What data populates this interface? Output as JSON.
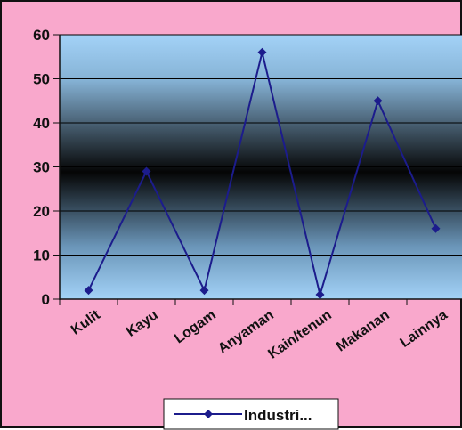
{
  "chart_data": {
    "type": "line",
    "categories": [
      "Kulit",
      "Kayu",
      "Logam",
      "Anyaman",
      "Kain/tenun",
      "Makanan",
      "Lainnya"
    ],
    "series": [
      {
        "name": "Industri...",
        "values": [
          2,
          29,
          2,
          56,
          1,
          45,
          16
        ]
      }
    ],
    "ylim": [
      0,
      60
    ],
    "yticks": [
      0,
      10,
      20,
      30,
      40,
      50,
      60
    ],
    "grid": true,
    "legend_position": "bottom",
    "colors": {
      "line": "#1c1c8c",
      "frame_background": "#f9a8cc",
      "plot_light": "#a3d2f7",
      "plot_dark": "#050505",
      "gridline": "#000000"
    }
  }
}
